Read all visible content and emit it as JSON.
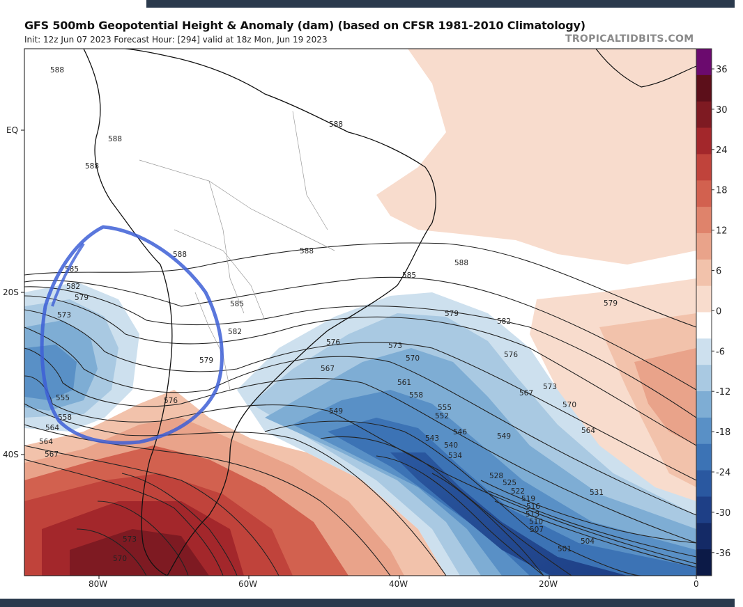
{
  "header": {
    "title": "GFS 500mb Geopotential Height & Anomaly (dam) (based on CFSR 1981-2010 Climatology)",
    "subtitle": "Init: 12z Jun 07 2023   Forecast Hour: [294]   valid at 18z Mon, Jun 19 2023",
    "credit": "TROPICALTIDBITS.COM"
  },
  "map": {
    "lat_labels": [
      "EQ",
      "20S",
      "40S"
    ],
    "lon_labels": [
      "80W",
      "60W",
      "40W",
      "20W",
      "0"
    ],
    "contour_labels": [
      "588",
      "588",
      "588",
      "588",
      "588",
      "588",
      "588",
      "585",
      "585",
      "585",
      "582",
      "582",
      "582",
      "579",
      "579",
      "579",
      "579",
      "576",
      "576",
      "576",
      "573",
      "573",
      "573",
      "573",
      "570",
      "570",
      "570",
      "567",
      "567",
      "567",
      "564",
      "564",
      "564",
      "561",
      "561",
      "558",
      "558",
      "555",
      "555",
      "552",
      "549",
      "549",
      "546",
      "543",
      "540",
      "534",
      "531",
      "528",
      "525",
      "522",
      "519",
      "516",
      "513",
      "510",
      "507",
      "504",
      "501"
    ],
    "colorbar": {
      "ticks": [
        "36",
        "30",
        "24",
        "18",
        "12",
        "6",
        "0",
        "-6",
        "-12",
        "-18",
        "-24",
        "-30",
        "-36"
      ],
      "colors": [
        "#6b0a6e",
        "#5c0f1a",
        "#7e1a22",
        "#a3272b",
        "#c0433b",
        "#d2614f",
        "#df836b",
        "#e9a38a",
        "#f2c2ab",
        "#f8dccd",
        "#ffffff",
        "#cde0ee",
        "#a9c9e2",
        "#7eadd4",
        "#5990c6",
        "#3c73b5",
        "#2a58a0",
        "#1e3f86",
        "#142a66",
        "#0c1a47"
      ]
    },
    "annotation": "blue-marker-circle"
  }
}
